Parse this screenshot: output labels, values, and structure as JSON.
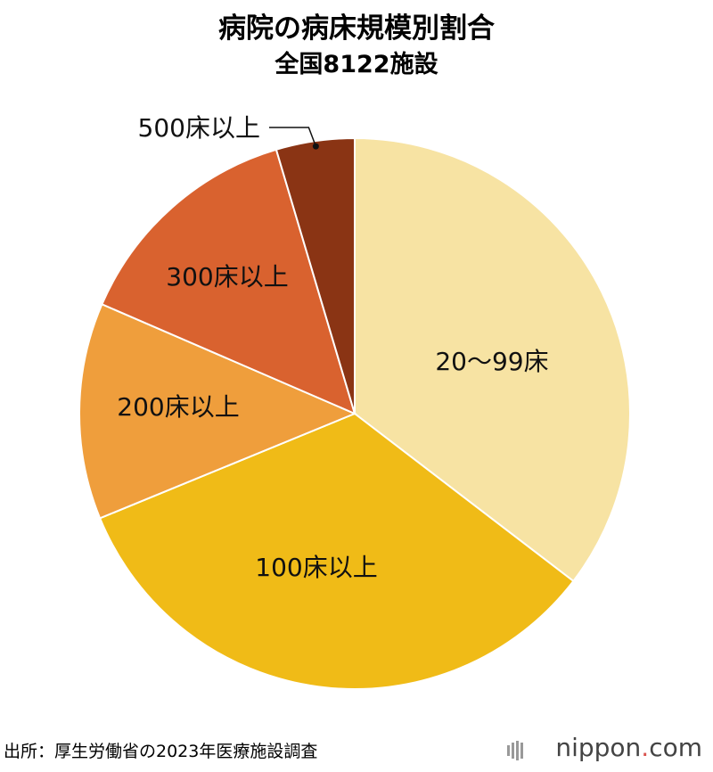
{
  "title": "病院の病床規模別割合",
  "subtitle": "全国8122施設",
  "source": "出所：厚生労働省の2023年医療施設調査",
  "brand": {
    "name": "nippon",
    "dot": ".",
    "suffix": "com"
  },
  "chart_data": {
    "type": "pie",
    "start": "12 o'clock, clockwise",
    "slices": [
      {
        "label": "20～99床",
        "value": 35.4,
        "color": "#f7e3a3"
      },
      {
        "label": "100床以上",
        "value": 33.4,
        "color": "#f0bb17"
      },
      {
        "label": "200床以上",
        "value": 12.7,
        "color": "#ef9e3c"
      },
      {
        "label": "300床以上",
        "value": 13.9,
        "color": "#d9622f"
      },
      {
        "label": "500床以上",
        "value": 4.6,
        "color": "#8a3414"
      }
    ]
  }
}
